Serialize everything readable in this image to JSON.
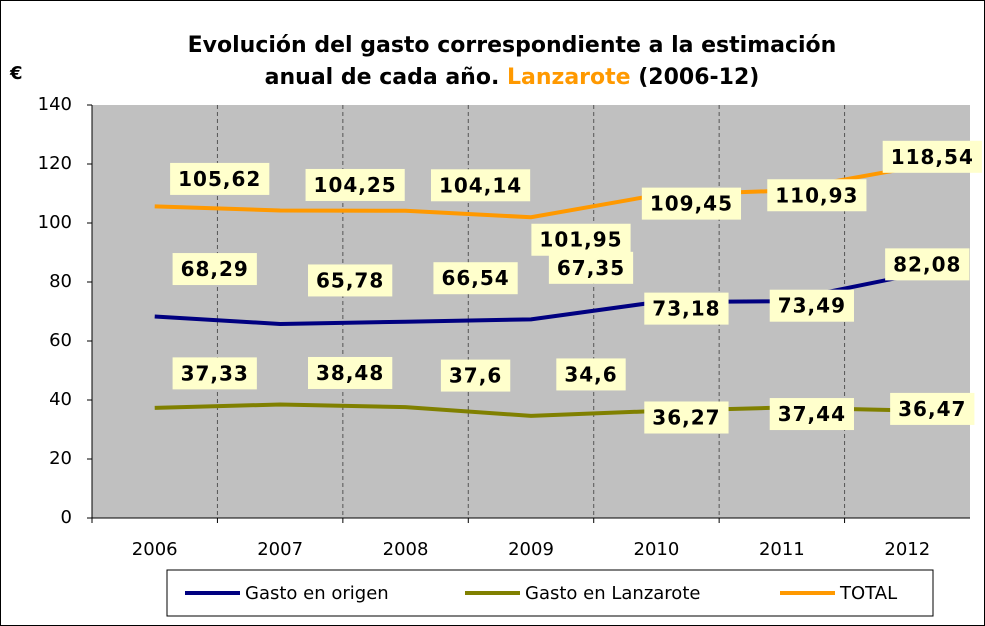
{
  "chart_data": {
    "type": "line",
    "title": [
      "Evolución del gasto correspondiente a la estimación",
      "anual de cada año.",
      "Lanzarote",
      "(2006-12)"
    ],
    "y_label": "€",
    "categories": [
      "2006",
      "2007",
      "2008",
      "2009",
      "2010",
      "2011",
      "2012"
    ],
    "series": [
      {
        "name": "Gasto en origen",
        "color": "#000080",
        "values": [
          68.29,
          65.78,
          66.54,
          67.35,
          73.18,
          73.49,
          82.08
        ],
        "value_labels": [
          "68,29",
          "65,78",
          "66,54",
          "67,35",
          "73,18",
          "73,49",
          "82,08"
        ]
      },
      {
        "name": "Gasto en Lanzarote",
        "color": "#808000",
        "values": [
          37.33,
          38.48,
          37.6,
          34.6,
          36.27,
          37.44,
          36.47
        ],
        "value_labels": [
          "37,33",
          "38,48",
          "37,6",
          "34,6",
          "36,27",
          "37,44",
          "36,47"
        ]
      },
      {
        "name": "TOTAL",
        "color": "#FF9900",
        "values": [
          105.62,
          104.25,
          104.14,
          101.95,
          109.45,
          110.93,
          118.54
        ],
        "value_labels": [
          "105,62",
          "104,25",
          "104,14",
          "101,95",
          "109,45",
          "110,93",
          "118,54"
        ]
      }
    ],
    "ylim": [
      0,
      140
    ],
    "yticks": [
      0,
      20,
      40,
      60,
      80,
      100,
      120,
      140
    ]
  }
}
